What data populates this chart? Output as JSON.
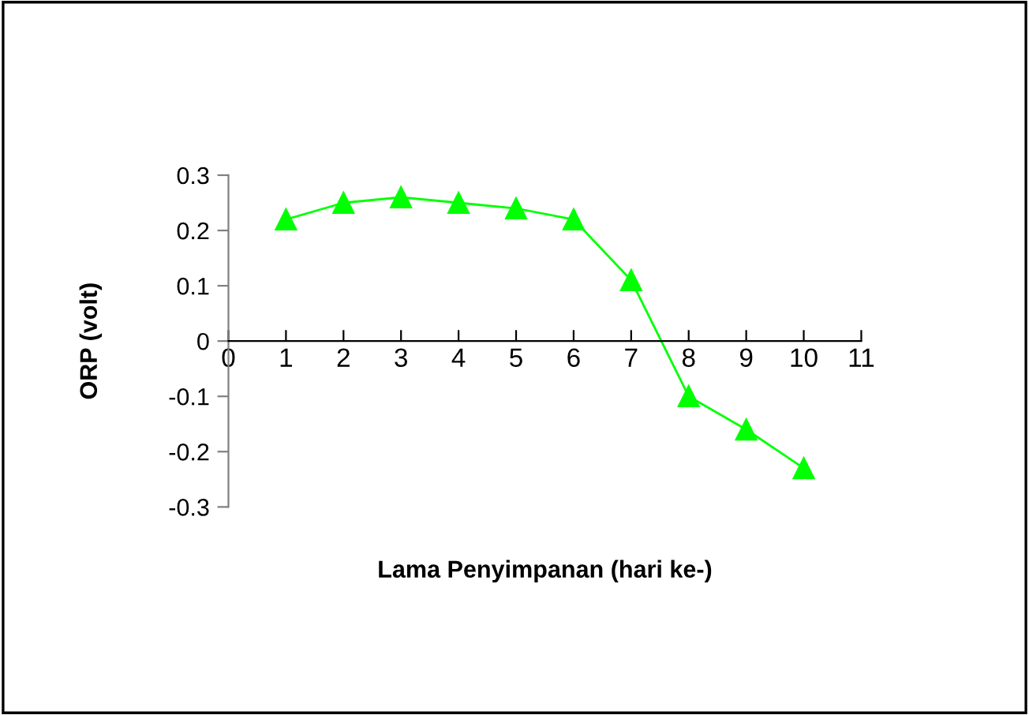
{
  "chart_data": {
    "type": "line",
    "xlabel": "Lama Penyimpanan (hari ke-)",
    "ylabel": "ORP (volt)",
    "x": [
      1,
      2,
      3,
      4,
      5,
      6,
      7,
      8,
      9,
      10
    ],
    "series": [
      {
        "color": "#00ff00",
        "values": [
          0.22,
          0.25,
          0.26,
          0.25,
          0.24,
          0.22,
          0.11,
          -0.1,
          -0.16,
          -0.23
        ]
      }
    ],
    "xlim": [
      0,
      11
    ],
    "xticks": [
      0,
      1,
      2,
      3,
      4,
      5,
      6,
      7,
      8,
      9,
      10,
      11
    ],
    "ylim": [
      -0.3,
      0.3
    ],
    "yticks": [
      -0.3,
      -0.2,
      -0.1,
      0,
      0.1,
      0.2,
      0.3
    ],
    "marker": "triangle",
    "line_style": "solid",
    "grid": false,
    "legend": false
  }
}
